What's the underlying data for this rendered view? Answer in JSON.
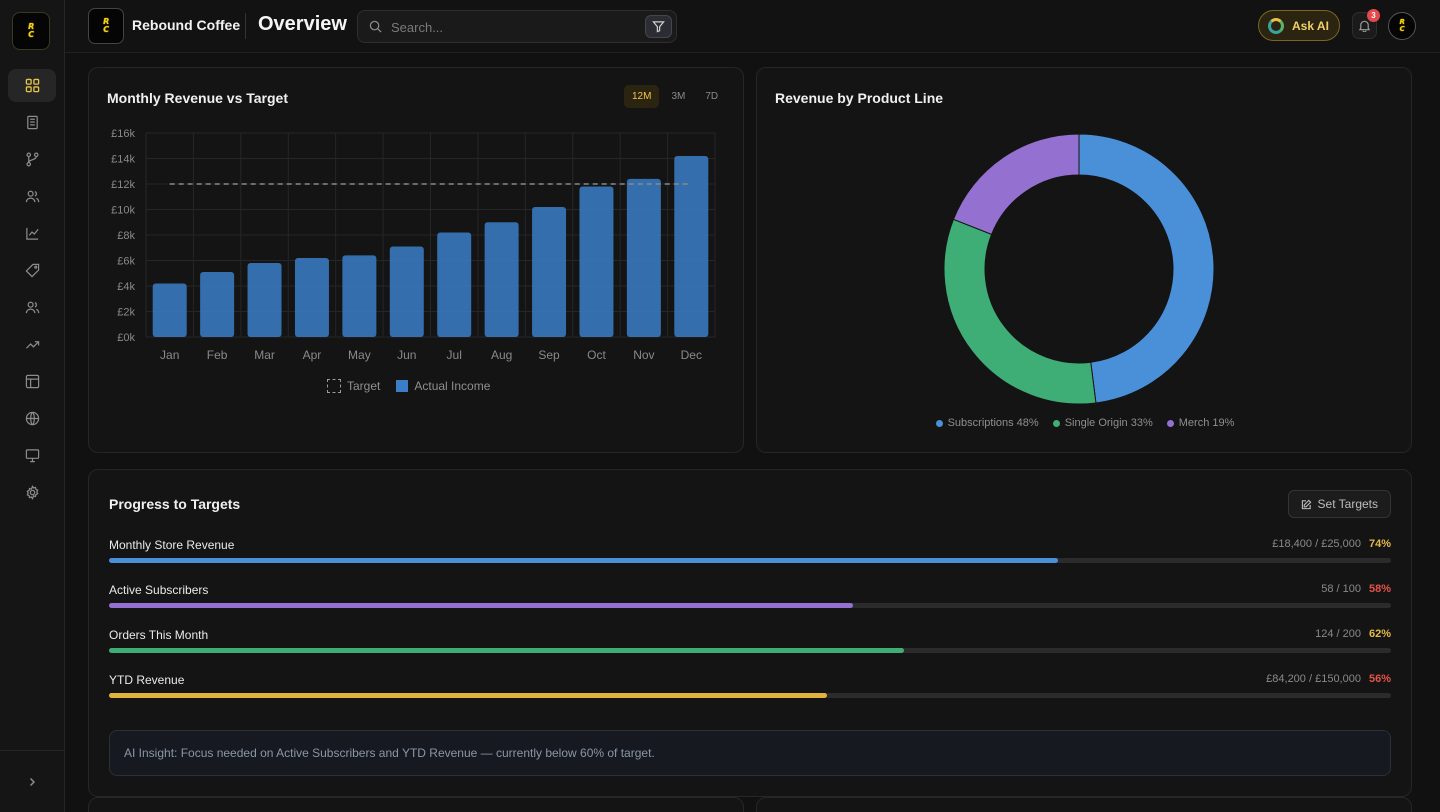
{
  "brand": {
    "logo_text": "REBOUND COFFEE",
    "name": "Rebound Coffee"
  },
  "header": {
    "title": "Overview",
    "search_placeholder": "Search...",
    "ask_ai_label": "Ask AI",
    "notification_count": "3"
  },
  "sidebar": {
    "items": [
      {
        "icon": "dashboard-grid-icon",
        "active": true
      },
      {
        "icon": "building-icon",
        "active": false
      },
      {
        "icon": "git-branch-icon",
        "active": false
      },
      {
        "icon": "users-icon",
        "active": false
      },
      {
        "icon": "line-chart-icon",
        "active": false
      },
      {
        "icon": "tag-icon",
        "active": false
      },
      {
        "icon": "contacts-icon",
        "active": false
      },
      {
        "icon": "trending-up-icon",
        "active": false
      },
      {
        "icon": "layout-icon",
        "active": false
      },
      {
        "icon": "globe-icon",
        "active": false
      },
      {
        "icon": "monitor-icon",
        "active": false
      },
      {
        "icon": "settings-gear-icon",
        "active": false
      }
    ],
    "expand_icon": "chevron-right-icon"
  },
  "revenue_card": {
    "title": "Monthly Revenue vs Target",
    "ranges": [
      "12M",
      "3M",
      "7D"
    ],
    "active_range": "12M",
    "legend_target": "Target",
    "legend_actual": "Actual Income"
  },
  "product_card": {
    "title": "Revenue by Product Line",
    "legend": [
      {
        "label": "Subscriptions 48%",
        "color": "#4a90d9"
      },
      {
        "label": "Single Origin 33%",
        "color": "#3fae76"
      },
      {
        "label": "Merch 19%",
        "color": "#9470d0"
      }
    ]
  },
  "chart_data": [
    {
      "type": "bar",
      "title": "Monthly Revenue vs Target",
      "categories": [
        "Jan",
        "Feb",
        "Mar",
        "Apr",
        "May",
        "Jun",
        "Jul",
        "Aug",
        "Sep",
        "Oct",
        "Nov",
        "Dec"
      ],
      "series": [
        {
          "name": "Actual Income",
          "color": "#3b7ec7",
          "values": [
            4200,
            5100,
            5800,
            6200,
            6400,
            7100,
            8200,
            9000,
            10200,
            11800,
            12400,
            14200
          ]
        },
        {
          "name": "Target",
          "type": "line",
          "style": "dashed",
          "values": [
            12000,
            12000,
            12000,
            12000,
            12000,
            12000,
            12000,
            12000,
            12000,
            12000,
            12000,
            12000
          ]
        }
      ],
      "ylim": [
        0,
        16000
      ],
      "yticks": [
        0,
        2000,
        4000,
        6000,
        8000,
        10000,
        12000,
        14000,
        16000
      ],
      "ytick_labels": [
        "£0k",
        "£2k",
        "£4k",
        "£6k",
        "£8k",
        "£10k",
        "£12k",
        "£14k",
        "£16k"
      ],
      "grid": true,
      "legend_position": "bottom"
    },
    {
      "type": "pie",
      "variant": "donut",
      "title": "Revenue by Product Line",
      "categories": [
        "Subscriptions",
        "Single Origin",
        "Merch"
      ],
      "values": [
        48,
        33,
        19
      ],
      "colors": [
        "#4a90d9",
        "#3fae76",
        "#9470d0"
      ],
      "legend_position": "bottom"
    }
  ],
  "progress": {
    "title": "Progress to Targets",
    "set_targets_label": "Set Targets",
    "rows": [
      {
        "label": "Monthly Store Revenue",
        "value": "£18,400 / £25,000",
        "pct": "74%",
        "fraction": 0.74,
        "bar_color": "#4a90d9",
        "pct_color": "#e5b94a"
      },
      {
        "label": "Active Subscribers",
        "value": "58 / 100",
        "pct": "58%",
        "fraction": 0.58,
        "bar_color": "#9470d0",
        "pct_color": "#e5534b"
      },
      {
        "label": "Orders This Month",
        "value": "124 / 200",
        "pct": "62%",
        "fraction": 0.62,
        "bar_color": "#3fae76",
        "pct_color": "#e5b94a"
      },
      {
        "label": "YTD Revenue",
        "value": "£84,200 / £150,000",
        "pct": "56%",
        "fraction": 0.56,
        "bar_color": "#e0b43c",
        "pct_color": "#e5534b"
      }
    ],
    "insight": "AI Insight: Focus needed on Active Subscribers and YTD Revenue — currently below 60% of target."
  }
}
